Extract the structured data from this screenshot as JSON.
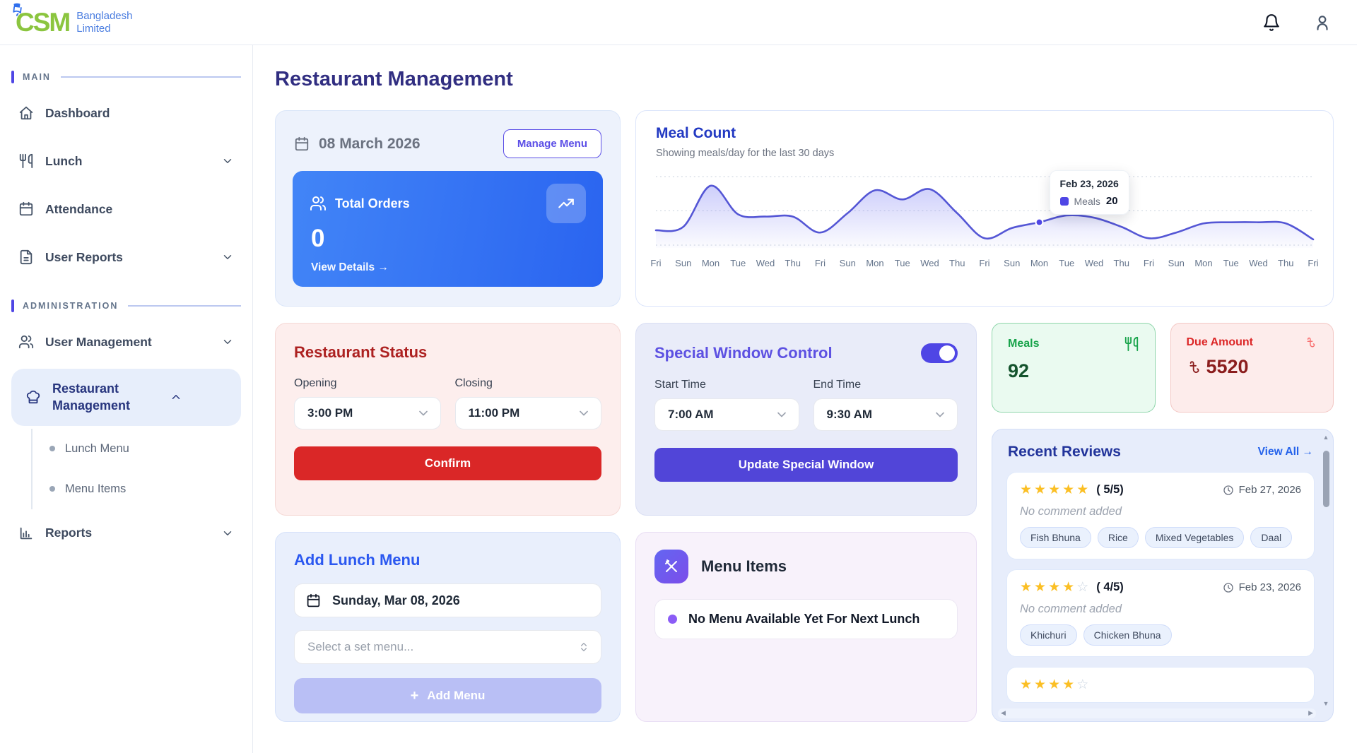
{
  "brand": {
    "name": "CSM",
    "subtitle_line1": "Bangladesh",
    "subtitle_line2": "Limited",
    "rocket_icon": "rocket"
  },
  "header": {
    "notification_icon": "bell",
    "profile_icon": "user"
  },
  "page": {
    "title": "Restaurant Management"
  },
  "sidebar": {
    "sections": [
      {
        "label": "MAIN",
        "items": [
          {
            "label": "Dashboard",
            "icon": "home"
          },
          {
            "label": "Lunch",
            "icon": "utensils",
            "chevron": "down"
          },
          {
            "label": "Attendance",
            "icon": "calendar"
          },
          {
            "label": "User Reports",
            "icon": "file-text",
            "chevron": "down"
          }
        ]
      },
      {
        "label": "ADMINISTRATION",
        "items": [
          {
            "label": "User Management",
            "icon": "users",
            "chevron": "down"
          },
          {
            "label": "Restaurant Management",
            "icon": "chef-hat",
            "chevron": "up",
            "active": true,
            "children": [
              {
                "label": "Lunch Menu"
              },
              {
                "label": "Menu Items"
              }
            ]
          },
          {
            "label": "Reports",
            "icon": "bar-chart",
            "chevron": "down"
          }
        ]
      }
    ]
  },
  "date_card": {
    "date": "08 March 2026",
    "manage_button": "Manage Menu",
    "total_orders_label": "Total Orders",
    "total_orders_value": "0",
    "view_details": "View Details →"
  },
  "chart_data": {
    "type": "line",
    "title": "Meal Count",
    "subtitle": "Showing meals/day for the last 30 days",
    "x": [
      "Fri",
      "Sun",
      "Mon",
      "Tue",
      "Wed",
      "Thu",
      "Fri",
      "Sun",
      "Mon",
      "Tue",
      "Wed",
      "Thu",
      "Fri",
      "Sun",
      "Mon",
      "Tue",
      "Wed",
      "Thu",
      "Fri",
      "Sun",
      "Mon",
      "Tue",
      "Wed",
      "Thu",
      "Fri"
    ],
    "series": [
      {
        "name": "Meals",
        "values": [
          13,
          16,
          52,
          27,
          25,
          25,
          11,
          28,
          48,
          40,
          49,
          28,
          6,
          15,
          20,
          26,
          24,
          16,
          6,
          11,
          19,
          20,
          20,
          19,
          5
        ]
      }
    ],
    "ylim": [
      0,
      60
    ],
    "gridlines": [
      0,
      30,
      60
    ],
    "grid": "dashed-horizontal",
    "legend_position": "tooltip-only",
    "line_color": "#5456d5",
    "tooltip": {
      "date": "Feb 23, 2026",
      "label": "Meals",
      "value": "20",
      "point_index": 14
    }
  },
  "restaurant_status": {
    "title": "Restaurant Status",
    "opening_label": "Opening",
    "opening_value": "3:00 PM",
    "closing_label": "Closing",
    "closing_value": "11:00 PM",
    "confirm_label": "Confirm"
  },
  "special_window": {
    "title": "Special Window Control",
    "enabled": true,
    "start_label": "Start Time",
    "start_value": "7:00 AM",
    "end_label": "End Time",
    "end_value": "9:30 AM",
    "button_label": "Update Special Window"
  },
  "stats": {
    "meals_label": "Meals",
    "meals_value": "92",
    "meals_icon": "utensils",
    "due_label": "Due Amount",
    "due_value": "5520",
    "due_icon": "taka"
  },
  "reviews": {
    "title": "Recent Reviews",
    "view_all": "View All →",
    "items": [
      {
        "rating": 5,
        "max": 5,
        "rating_text": "( 5/5)",
        "date": "Feb 27, 2026",
        "comment": "No comment added",
        "tags": [
          "Fish Bhuna",
          "Rice",
          "Mixed Vegetables",
          "Daal"
        ]
      },
      {
        "rating": 4,
        "max": 5,
        "rating_text": "( 4/5)",
        "date": "Feb 23, 2026",
        "comment": "No comment added",
        "tags": [
          "Khichuri",
          "Chicken Bhuna"
        ]
      },
      {
        "rating": 4,
        "max": 5,
        "rating_text": "",
        "date": "",
        "comment": "",
        "tags": []
      }
    ]
  },
  "add_menu": {
    "title": "Add Lunch Menu",
    "date_value": "Sunday, Mar 08, 2026",
    "select_placeholder": "Select a set menu...",
    "button_label": "Add Menu"
  },
  "menu_items": {
    "title": "Menu Items",
    "empty_message": "No Menu Available Yet For Next Lunch"
  },
  "colors": {
    "accent_indigo": "#4f46e5",
    "link_blue": "#2563eb",
    "danger_red": "#dc2626",
    "success_green": "#17a34a",
    "star_gold": "#fbbf24",
    "chart_line": "#5456d5",
    "title_navy": "#312e81"
  }
}
